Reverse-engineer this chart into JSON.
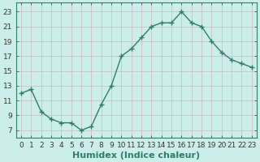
{
  "x": [
    0,
    1,
    2,
    3,
    4,
    5,
    6,
    7,
    8,
    9,
    10,
    11,
    12,
    13,
    14,
    15,
    16,
    17,
    18,
    19,
    20,
    21,
    22,
    23
  ],
  "y": [
    12,
    12.5,
    9.5,
    8.5,
    8,
    8,
    7,
    7.5,
    10.5,
    13,
    17,
    18,
    19.5,
    21,
    21.5,
    21.5,
    23,
    21.5,
    21,
    19,
    17.5,
    16.5,
    16,
    15.5
  ],
  "line_color": "#2e7d6e",
  "marker": "+",
  "marker_size": 4,
  "bg_color": "#cceee8",
  "grid_color": "#c9b8c4",
  "xlabel": "Humidex (Indice chaleur)",
  "xlabel_fontsize": 8,
  "ylabel_ticks": [
    7,
    9,
    11,
    13,
    15,
    17,
    19,
    21,
    23
  ],
  "xlim": [
    -0.5,
    23.5
  ],
  "ylim": [
    6.0,
    24.2
  ],
  "xtick_labels": [
    "0",
    "1",
    "2",
    "3",
    "4",
    "5",
    "6",
    "7",
    "8",
    "9",
    "10",
    "11",
    "12",
    "13",
    "14",
    "15",
    "16",
    "17",
    "18",
    "19",
    "20",
    "21",
    "22",
    "23"
  ],
  "tick_fontsize": 6.5,
  "line_width": 1.0,
  "spine_color": "#2e7d6e"
}
